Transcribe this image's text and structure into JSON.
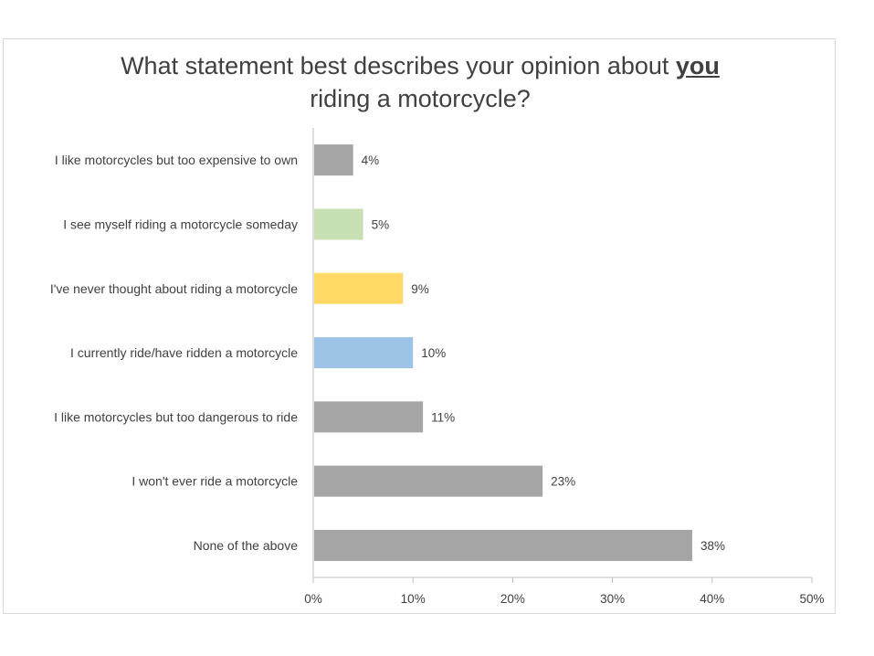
{
  "chart_data": {
    "type": "bar",
    "orientation": "horizontal",
    "title": {
      "line1_prefix": "What statement best describes your opinion about ",
      "line1_emphasis": "you",
      "line2": "riding a motorcycle?"
    },
    "categories": [
      "I like motorcycles but too expensive to own",
      "I see myself riding a motorcycle someday",
      "I've never thought about riding a motorcycle",
      "I currently ride/have ridden a motorcycle",
      "I like motorcycles but too dangerous to ride",
      "I won't ever ride a motorcycle",
      "None of the above"
    ],
    "values": [
      4,
      5,
      9,
      10,
      11,
      23,
      38
    ],
    "data_labels": [
      "4%",
      "5%",
      "9%",
      "10%",
      "11%",
      "23%",
      "38%"
    ],
    "bar_colors": [
      "#a5a5a5",
      "#c6e0b4",
      "#ffd966",
      "#9dc3e6",
      "#a5a5a5",
      "#a5a5a5",
      "#a5a5a5"
    ],
    "xlim": [
      0,
      50
    ],
    "x_ticks": [
      0,
      10,
      20,
      30,
      40,
      50
    ],
    "x_tick_labels": [
      "0%",
      "10%",
      "20%",
      "30%",
      "40%",
      "50%"
    ],
    "xlabel": "",
    "ylabel": "",
    "grid": false,
    "legend": "none"
  }
}
